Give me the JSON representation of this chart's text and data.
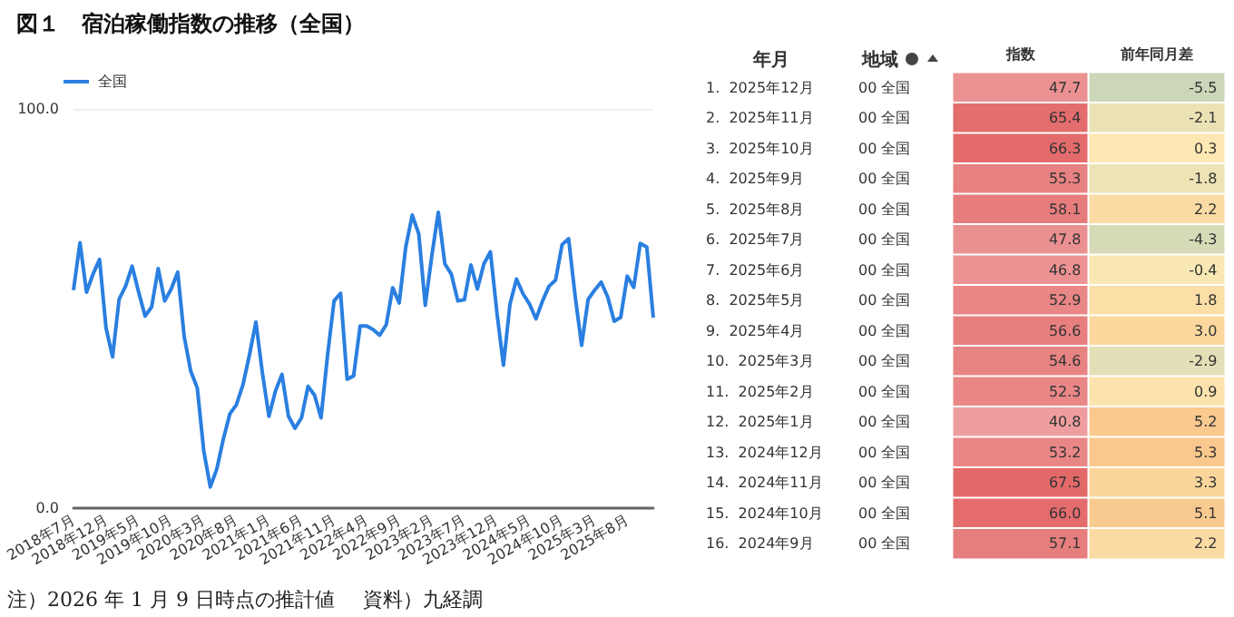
{
  "chart_data": [
    {
      "type": "line",
      "title": "図１　宿泊稼働指数の推移（全国）",
      "categories": [
        "2018年7月",
        null,
        null,
        null,
        null,
        "2018年12月",
        null,
        null,
        null,
        null,
        "2019年5月",
        null,
        null,
        null,
        null,
        "2019年10月",
        null,
        null,
        null,
        null,
        "2020年3月",
        null,
        null,
        null,
        null,
        "2020年8月",
        null,
        null,
        null,
        null,
        "2021年1月",
        null,
        null,
        null,
        null,
        "2021年6月",
        null,
        null,
        null,
        null,
        "2021年11月",
        null,
        null,
        null,
        null,
        "2022年4月",
        null,
        null,
        null,
        null,
        "2022年9月",
        null,
        null,
        null,
        null,
        "2023年2月",
        null,
        null,
        null,
        null,
        "2023年7月",
        null,
        null,
        null,
        null,
        "2023年12月",
        null,
        null,
        null,
        null,
        "2024年5月",
        null,
        null,
        null,
        null,
        "2024年10月",
        null,
        null,
        null,
        null,
        "2025年3月",
        null,
        null,
        null,
        null,
        "2025年8月",
        null,
        null,
        null,
        null
      ],
      "series": [
        {
          "name": "全国",
          "color": "#2a7fe0",
          "values": [
            54.6,
            66.5,
            54.1,
            58.6,
            62.3,
            45.1,
            37.9,
            52.3,
            55.6,
            60.6,
            54.1,
            48.1,
            50.4,
            60.0,
            51.9,
            54.9,
            59.1,
            42.9,
            34.3,
            30.1,
            14.3,
            5.3,
            9.8,
            17.3,
            23.6,
            25.9,
            30.8,
            38.3,
            46.6,
            33.8,
            23.0,
            29.3,
            33.5,
            23.0,
            20.0,
            22.6,
            30.5,
            28.3,
            22.6,
            38.3,
            51.9,
            53.8,
            32.3,
            33.1,
            45.6,
            45.6,
            44.7,
            43.3,
            45.9,
            55.2,
            51.4,
            65.4,
            73.4,
            68.7,
            50.8,
            63.2,
            74.1,
            61.2,
            58.6,
            51.9,
            52.2,
            60.9,
            54.9,
            61.2,
            64.2,
            48.9,
            35.8,
            51.1,
            57.4,
            53.7,
            51.1,
            47.4,
            51.9,
            55.6,
            57.1,
            66.0,
            67.5,
            53.2,
            40.8,
            52.3,
            54.6,
            56.6,
            52.9,
            46.8,
            47.8,
            58.1,
            55.3,
            66.3,
            65.4,
            47.7
          ]
        }
      ],
      "ylim": [
        0,
        100
      ],
      "yticks": [
        {
          "value": 0,
          "label": "0.0"
        },
        {
          "value": 100,
          "label": "100.0"
        }
      ],
      "grid": "y",
      "legend": "top left",
      "marker": "none",
      "annotations": [
        "注）2026 年 1 月 9 日時点の推計値",
        "資料）九経調"
      ]
    },
    {
      "type": "heatmap",
      "annotations": [
        "年月",
        "地域"
      ],
      "categories": [
        "指数",
        "前年同月差"
      ],
      "y_categories": [
        "1.  2025年12月",
        "2.  2025年11月",
        "3.  2025年10月",
        "4.  2025年9月",
        "5.  2025年8月",
        "6.  2025年7月",
        "7.  2025年6月",
        "8.  2025年5月",
        "9.  2025年4月",
        "10.  2025年3月",
        "11.  2025年2月",
        "12.  2025年1月",
        "13.  2024年12月",
        "14.  2024年11月",
        "15.  2024年10月",
        "16.  2024年9月"
      ],
      "y2_categories": [
        "00 全国",
        "00 全国",
        "00 全国",
        "00 全国",
        "00 全国",
        "00 全国",
        "00 全国",
        "00 全国",
        "00 全国",
        "00 全国",
        "00 全国",
        "00 全国",
        "00 全国",
        "00 全国",
        "00 全国",
        "00 全国"
      ],
      "cell_labels": [
        [
          "47.7",
          "-5.5"
        ],
        [
          "65.4",
          "-2.1"
        ],
        [
          "66.3",
          "0.3"
        ],
        [
          "55.3",
          "-1.8"
        ],
        [
          "58.1",
          "2.2"
        ],
        [
          "47.8",
          "-4.3"
        ],
        [
          "46.8",
          "-0.4"
        ],
        [
          "52.9",
          "1.8"
        ],
        [
          "56.6",
          "3.0"
        ],
        [
          "54.6",
          "-2.9"
        ],
        [
          "52.3",
          "0.9"
        ],
        [
          "40.8",
          "5.2"
        ],
        [
          "53.2",
          "5.3"
        ],
        [
          "67.5",
          "3.3"
        ],
        [
          "66.0",
          "5.1"
        ],
        [
          "57.1",
          "2.2"
        ]
      ],
      "cells": [
        [
          47.7,
          -5.5
        ],
        [
          65.4,
          -2.1
        ],
        [
          66.3,
          0.3
        ],
        [
          55.3,
          -1.8
        ],
        [
          58.1,
          2.2
        ],
        [
          47.8,
          -4.3
        ],
        [
          46.8,
          -0.4
        ],
        [
          52.9,
          1.8
        ],
        [
          56.6,
          3.0
        ],
        [
          54.6,
          -2.9
        ],
        [
          52.3,
          0.9
        ],
        [
          40.8,
          5.2
        ],
        [
          53.2,
          5.3
        ],
        [
          67.5,
          3.3
        ],
        [
          66.0,
          5.1
        ],
        [
          57.1,
          2.2
        ]
      ]
    }
  ]
}
